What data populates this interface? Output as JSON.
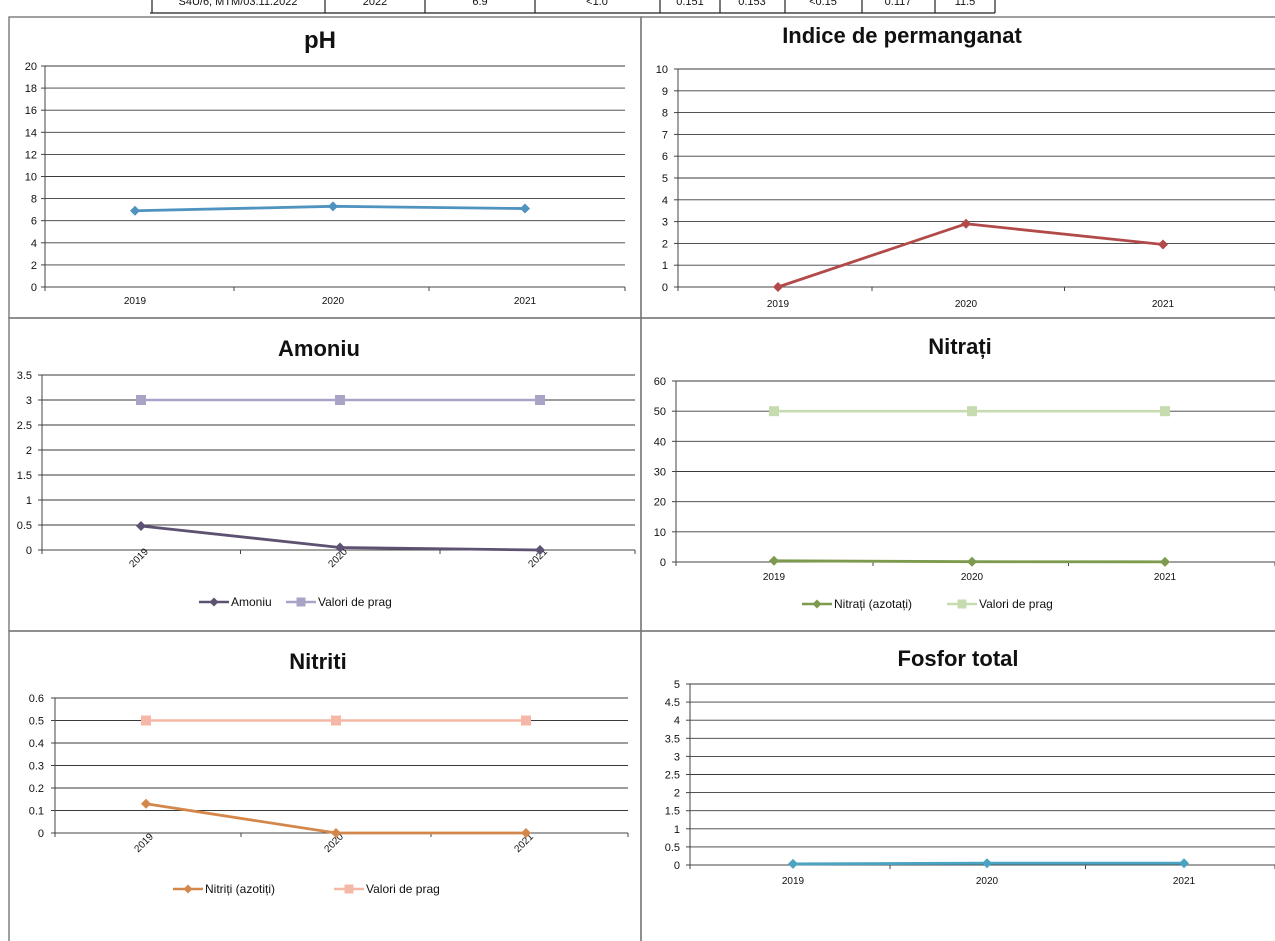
{
  "header_row": {
    "cells": [
      "S4U/6, MTM/03.11.2022",
      "2022",
      "6.9",
      "<1.0",
      "0.151",
      "0.153",
      "<0.15",
      "0.117",
      "11.5"
    ]
  },
  "chart_data": [
    {
      "type": "line",
      "title": "pH",
      "categories": [
        "2019",
        "2020",
        "2021"
      ],
      "ylim": [
        0,
        20
      ],
      "yticks": [
        "0",
        "2",
        "4",
        "6",
        "8",
        "10",
        "12",
        "14",
        "16",
        "18",
        "20"
      ],
      "x_tick_rotated": false,
      "grid": true,
      "legend": "none",
      "series": [
        {
          "values": [
            6.9,
            7.3,
            7.1
          ],
          "color": "#4f93c0",
          "marker": "diamond"
        }
      ]
    },
    {
      "type": "line",
      "title": "Indice de permanganat",
      "categories": [
        "2019",
        "2020",
        "2021"
      ],
      "ylim": [
        0,
        10
      ],
      "yticks": [
        "0",
        "1",
        "2",
        "3",
        "4",
        "5",
        "6",
        "7",
        "8",
        "9",
        "10"
      ],
      "x_tick_rotated": false,
      "grid": true,
      "legend": "none",
      "series": [
        {
          "values": [
            0,
            2.9,
            1.95
          ],
          "color": "#b34a4a",
          "marker": "diamond"
        }
      ]
    },
    {
      "type": "line",
      "title": "Amoniu",
      "categories": [
        "2019",
        "2020",
        "2021"
      ],
      "ylim": [
        0,
        3.5
      ],
      "yticks": [
        "0",
        "0.5",
        "1",
        "1.5",
        "2",
        "2.5",
        "3",
        "3.5"
      ],
      "x_tick_rotated": true,
      "grid": true,
      "legend": "bottom",
      "series": [
        {
          "name": "Amoniu",
          "values": [
            0.48,
            0.05,
            0.0
          ],
          "color": "#5e5272",
          "marker": "diamond"
        },
        {
          "name": "Valori de prag",
          "values": [
            3,
            3,
            3
          ],
          "color": "#aaa3c7",
          "marker": "square"
        }
      ]
    },
    {
      "type": "line",
      "title": "Nitrați",
      "categories": [
        "2019",
        "2020",
        "2021"
      ],
      "ylim": [
        0,
        60
      ],
      "yticks": [
        "0",
        "10",
        "20",
        "30",
        "40",
        "50",
        "60"
      ],
      "x_tick_rotated": false,
      "grid": true,
      "legend": "bottom",
      "series": [
        {
          "name": "Nitrați (azotați)",
          "values": [
            0.4,
            0.1,
            0.05
          ],
          "color": "#7d9a4e",
          "marker": "diamond"
        },
        {
          "name": "Valori de prag",
          "values": [
            50,
            50,
            50
          ],
          "color": "#c6dbb0",
          "marker": "square"
        }
      ]
    },
    {
      "type": "line",
      "title": "Nitriti",
      "categories": [
        "2019",
        "2020",
        "2021"
      ],
      "ylim": [
        0,
        0.6
      ],
      "yticks": [
        "0",
        "0.1",
        "0.2",
        "0.3",
        "0.4",
        "0.5",
        "0.6"
      ],
      "x_tick_rotated": true,
      "grid": true,
      "legend": "bottom",
      "series": [
        {
          "name": "Nitriți (azotiți)",
          "values": [
            0.13,
            0.0,
            0.0
          ],
          "color": "#d4874a",
          "marker": "diamond"
        },
        {
          "name": "Valori de prag",
          "values": [
            0.5,
            0.5,
            0.5
          ],
          "color": "#f5b8a6",
          "marker": "square"
        }
      ]
    },
    {
      "type": "line",
      "title": "Fosfor total",
      "categories": [
        "2019",
        "2020",
        "2021"
      ],
      "ylim": [
        0,
        5
      ],
      "yticks": [
        "0",
        "0.5",
        "1",
        "1.5",
        "2",
        "2.5",
        "3",
        "3.5",
        "4",
        "4.5",
        "5"
      ],
      "x_tick_rotated": false,
      "grid": true,
      "legend": "none",
      "series": [
        {
          "values": [
            0.03,
            0.05,
            0.05
          ],
          "color": "#4aa3c2",
          "marker": "diamond"
        }
      ]
    }
  ]
}
